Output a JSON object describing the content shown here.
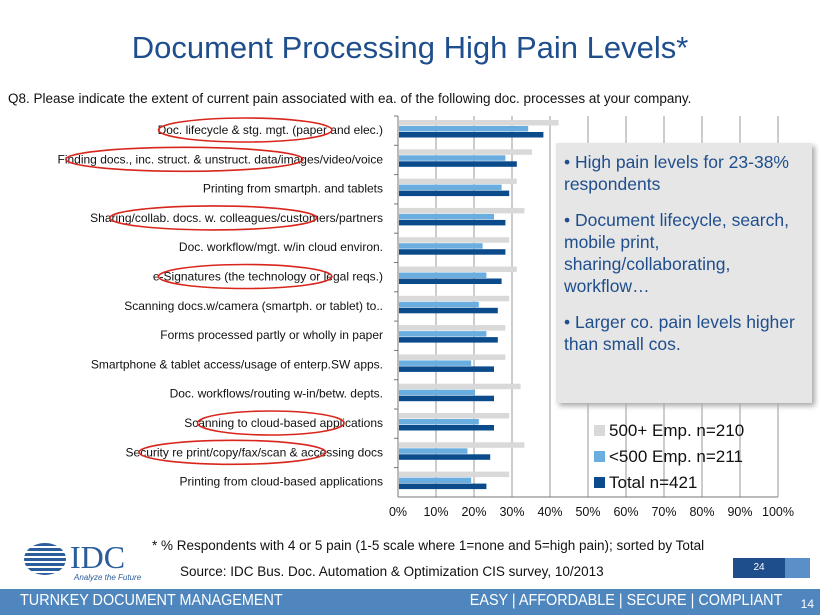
{
  "title": "Document Processing High Pain Levels*",
  "question": "Q8. Please indicate the extent of current pain associated with ea. of the following doc. processes at your company.",
  "chart_data": {
    "type": "bar",
    "orientation": "horizontal",
    "categories": [
      "Doc. lifecycle & stg. mgt. (paper and elec.)",
      "Finding docs., inc. struct. & unstruct. data/images/video/voice",
      "Printing from smartph. and tablets",
      "Sharing/collab. docs. w. colleagues/customers/partners",
      "Doc. workflow/mgt. w/in cloud environ.",
      "e-Signatures (the technology or legal reqs.)",
      "Scanning docs.w/camera (smartph. or tablet) to..",
      "Forms processed partly or wholly in paper",
      "Smartphone & tablet access/usage of enterp.SW apps.",
      "Doc. workflows/routing w-in/betw. depts.",
      "Scanning to cloud-based applications",
      "Security re print/copy/fax/scan & accessing docs",
      "Printing from cloud-based applications"
    ],
    "highlighted": [
      0,
      1,
      3,
      5,
      10,
      11
    ],
    "series": [
      {
        "name": "500+ Emp. n=210",
        "color": "#d9d9d9",
        "values": [
          42,
          35,
          31,
          33,
          29,
          31,
          29,
          28,
          28,
          32,
          29,
          33,
          29
        ]
      },
      {
        "name": "<500 Emp. n=211",
        "color": "#6aaee0",
        "values": [
          34,
          28,
          27,
          25,
          22,
          23,
          21,
          23,
          19,
          20,
          21,
          18,
          19
        ]
      },
      {
        "name": "Total n=421",
        "color": "#0b4a8b",
        "values": [
          38,
          31,
          29,
          28,
          28,
          27,
          26,
          26,
          25,
          25,
          25,
          24,
          23
        ]
      }
    ],
    "xlim": [
      0,
      100
    ],
    "xticks": [
      "0%",
      "10%",
      "20%",
      "30%",
      "40%",
      "50%",
      "60%",
      "70%",
      "80%",
      "90%",
      "100%"
    ],
    "grid": true,
    "legend": "bottom-right"
  },
  "callout": [
    "• High pain levels for 23-38% respondents",
    "• Document lifecycle, search, mobile print, sharing/collaborating, workflow…",
    "• Larger co. pain levels higher than small cos."
  ],
  "note": "* % Respondents with 4 or 5 pain (1-5 scale where 1=none and 5=high pain); sorted by Total",
  "source": "Source:  IDC Bus. Doc. Automation & Optimization CIS survey, 10/2013",
  "slide_number": "24",
  "logo": {
    "text": "IDC",
    "tagline": "Analyze the Future"
  },
  "footer": {
    "left": "TURNKEY DOCUMENT MANAGEMENT",
    "right": "EASY  |  AFFORDABLE  |  SECURE  |  COMPLIANT",
    "page": "14"
  }
}
